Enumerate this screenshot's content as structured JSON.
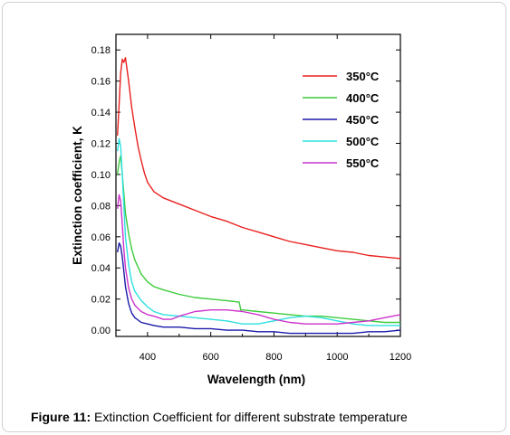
{
  "caption": {
    "label": "Figure 11:",
    "text": " Extinction Coefficient for different substrate temperature"
  },
  "chart_data": {
    "type": "line",
    "title": "",
    "xlabel": "Wavelength (nm)",
    "ylabel": "Extinction coefficient, K",
    "xlim": [
      300,
      1200
    ],
    "ylim": [
      -0.004,
      0.19
    ],
    "x_ticks": [
      400,
      600,
      800,
      1000,
      1200
    ],
    "x_tick_labels": [
      "400",
      "600",
      "800",
      "1000",
      "1200"
    ],
    "y_ticks": [
      0,
      0.02,
      0.04,
      0.06,
      0.08,
      0.1,
      0.12,
      0.14,
      0.16,
      0.18
    ],
    "y_tick_labels": [
      "0.00",
      "0.02",
      "0.04",
      "0.06",
      "0.08",
      "0.10",
      "0.12",
      "0.14",
      "0.16",
      "0.18"
    ],
    "grid": false,
    "legend_position": "top-right",
    "series": [
      {
        "name": "350°C",
        "color": "#e8201e",
        "x": [
          305,
          310,
          315,
          320,
          325,
          330,
          340,
          350,
          360,
          370,
          380,
          390,
          400,
          420,
          450,
          500,
          550,
          600,
          650,
          700,
          750,
          800,
          850,
          900,
          950,
          1000,
          1050,
          1100,
          1150,
          1200
        ],
        "y": [
          0.125,
          0.145,
          0.165,
          0.174,
          0.172,
          0.175,
          0.16,
          0.143,
          0.13,
          0.118,
          0.109,
          0.101,
          0.095,
          0.089,
          0.085,
          0.081,
          0.077,
          0.073,
          0.07,
          0.066,
          0.063,
          0.06,
          0.057,
          0.055,
          0.053,
          0.051,
          0.05,
          0.048,
          0.047,
          0.046
        ]
      },
      {
        "name": "400°C",
        "color": "#3ccc3c",
        "x": [
          305,
          310,
          315,
          320,
          325,
          330,
          340,
          350,
          360,
          380,
          400,
          420,
          450,
          500,
          550,
          600,
          650,
          690,
          695,
          700,
          750,
          800,
          850,
          900,
          950,
          1000,
          1050,
          1100,
          1150,
          1200
        ],
        "y": [
          0.1,
          0.108,
          0.112,
          0.1,
          0.088,
          0.075,
          0.062,
          0.052,
          0.045,
          0.036,
          0.031,
          0.028,
          0.026,
          0.023,
          0.021,
          0.02,
          0.019,
          0.018,
          0.013,
          0.013,
          0.012,
          0.011,
          0.01,
          0.009,
          0.009,
          0.008,
          0.007,
          0.006,
          0.005,
          0.005
        ]
      },
      {
        "name": "450°C",
        "color": "#1a1aaa",
        "x": [
          305,
          310,
          315,
          320,
          325,
          330,
          340,
          350,
          360,
          380,
          400,
          420,
          450,
          500,
          550,
          600,
          650,
          700,
          750,
          800,
          850,
          900,
          950,
          1000,
          1050,
          1100,
          1150,
          1200
        ],
        "y": [
          0.05,
          0.056,
          0.054,
          0.047,
          0.038,
          0.028,
          0.017,
          0.011,
          0.008,
          0.005,
          0.004,
          0.003,
          0.002,
          0.002,
          0.001,
          0.001,
          0.0,
          0.0,
          -0.001,
          -0.001,
          -0.002,
          -0.002,
          -0.002,
          -0.002,
          -0.002,
          -0.001,
          -0.001,
          0.0
        ]
      },
      {
        "name": "500°C",
        "color": "#2ee0e0",
        "x": [
          305,
          310,
          315,
          320,
          325,
          330,
          340,
          350,
          360,
          380,
          400,
          420,
          450,
          500,
          550,
          600,
          650,
          700,
          750,
          800,
          850,
          900,
          950,
          1000,
          1050,
          1100,
          1150,
          1200
        ],
        "y": [
          0.115,
          0.123,
          0.118,
          0.1,
          0.08,
          0.06,
          0.042,
          0.031,
          0.025,
          0.019,
          0.015,
          0.012,
          0.01,
          0.009,
          0.008,
          0.007,
          0.006,
          0.004,
          0.004,
          0.006,
          0.008,
          0.009,
          0.008,
          0.006,
          0.004,
          0.003,
          0.003,
          0.003
        ]
      },
      {
        "name": "550°C",
        "color": "#cc33cc",
        "x": [
          305,
          310,
          315,
          320,
          325,
          330,
          340,
          350,
          360,
          380,
          400,
          420,
          450,
          475,
          500,
          550,
          600,
          650,
          700,
          750,
          800,
          850,
          900,
          950,
          1000,
          1050,
          1100,
          1150,
          1200
        ],
        "y": [
          0.078,
          0.087,
          0.083,
          0.068,
          0.052,
          0.04,
          0.027,
          0.02,
          0.016,
          0.012,
          0.01,
          0.009,
          0.007,
          0.007,
          0.009,
          0.012,
          0.013,
          0.013,
          0.012,
          0.01,
          0.007,
          0.005,
          0.004,
          0.004,
          0.004,
          0.005,
          0.006,
          0.008,
          0.01
        ]
      }
    ]
  }
}
